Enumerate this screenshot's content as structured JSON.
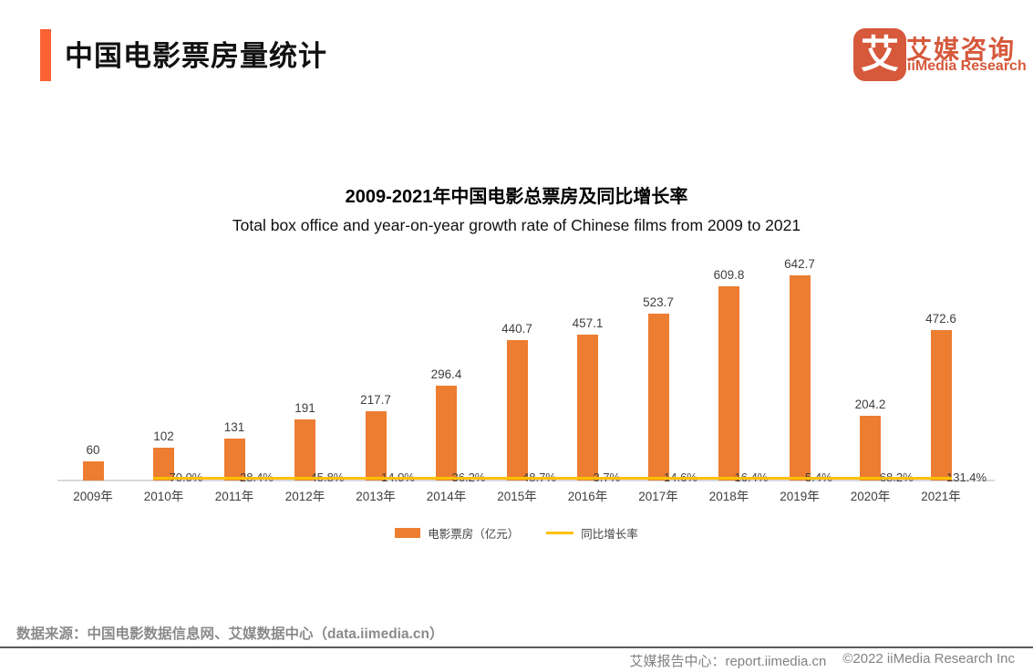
{
  "header": {
    "title": "中国电影票房量统计"
  },
  "logo": {
    "mark_glyph": "艾",
    "brand_cn": "艾媒咨询",
    "brand_en": "iiMedia Research"
  },
  "chart_data": {
    "type": "bar",
    "title": "2009-2021年中国电影总票房及同比增长率",
    "subtitle": "Total box office and year-on-year growth rate of Chinese films from 2009 to 2021",
    "categories": [
      "2009年",
      "2010年",
      "2011年",
      "2012年",
      "2013年",
      "2014年",
      "2015年",
      "2016年",
      "2017年",
      "2018年",
      "2019年",
      "2020年",
      "2021年"
    ],
    "series": [
      {
        "name": "电影票房（亿元）",
        "type": "bar",
        "values": [
          60,
          102,
          131,
          191,
          217.7,
          296.4,
          440.7,
          457.1,
          523.7,
          609.8,
          642.7,
          204.2,
          472.6
        ]
      },
      {
        "name": "同比增长率",
        "type": "line",
        "unit": "%",
        "values": [
          null,
          70.0,
          28.4,
          45.8,
          14.0,
          36.2,
          48.7,
          3.7,
          14.6,
          16.4,
          5.4,
          -68.2,
          131.4
        ]
      }
    ],
    "ylim": [
      0,
      650
    ],
    "grid": false,
    "legend_position": "bottom",
    "value_labels_shown": true
  },
  "footer": {
    "source": "数据来源：中国电影数据信息网、艾媒数据中心（data.iimedia.cn）",
    "report_center": "艾媒报告中心：report.iimedia.cn",
    "copyright": "©2022 iiMedia Research Inc"
  },
  "colors": {
    "bar": "#ED7D31",
    "line": "#FFC000",
    "accent": "#FA6234",
    "brand": "#D6593B",
    "axis": "#D9D9D9",
    "label": "#3F3F3F",
    "muted": "#8A8A8A"
  }
}
